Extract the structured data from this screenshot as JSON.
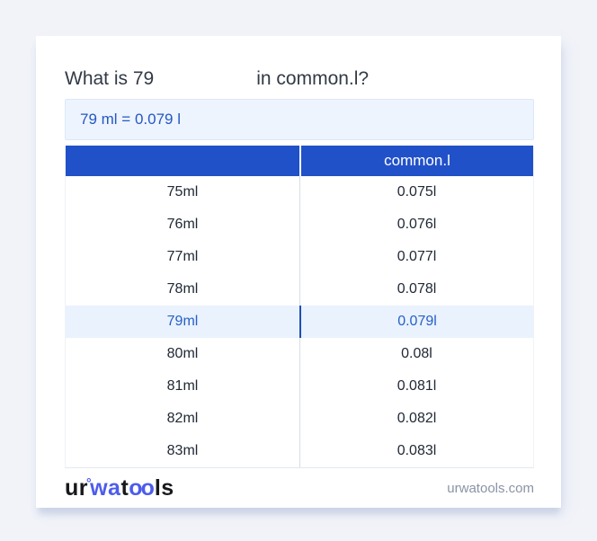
{
  "title": {
    "prefix": "What is 79",
    "suffix": "in common.l?"
  },
  "result": {
    "text": "79 ml = 0.079 l"
  },
  "table": {
    "columns": [
      {
        "label": ""
      },
      {
        "label": "common.l"
      }
    ],
    "rows": [
      {
        "ml": "75ml",
        "l": "0.075l",
        "highlighted": false
      },
      {
        "ml": "76ml",
        "l": "0.076l",
        "highlighted": false
      },
      {
        "ml": "77ml",
        "l": "0.077l",
        "highlighted": false
      },
      {
        "ml": "78ml",
        "l": "0.078l",
        "highlighted": false
      },
      {
        "ml": "79ml",
        "l": "0.079l",
        "highlighted": true
      },
      {
        "ml": "80ml",
        "l": "0.08l",
        "highlighted": false
      },
      {
        "ml": "81ml",
        "l": "0.081l",
        "highlighted": false
      },
      {
        "ml": "82ml",
        "l": "0.082l",
        "highlighted": false
      },
      {
        "ml": "83ml",
        "l": "0.083l",
        "highlighted": false
      }
    ]
  },
  "footer": {
    "logo": {
      "part1": "ur",
      "ring": "°",
      "part2": "wa",
      "part3": "t",
      "part4": "oo",
      "part5": "ls"
    },
    "site": "urwatools.com"
  },
  "colors": {
    "page_background": "#f1f3f9",
    "header_blue": "#2151c9",
    "result_text_blue": "#2457c5",
    "highlight_row_bg": "#e9f2fd",
    "highlight_text": "#2760c8",
    "logo_blue": "#4d5cec",
    "footer_gray": "#8a93a5"
  }
}
